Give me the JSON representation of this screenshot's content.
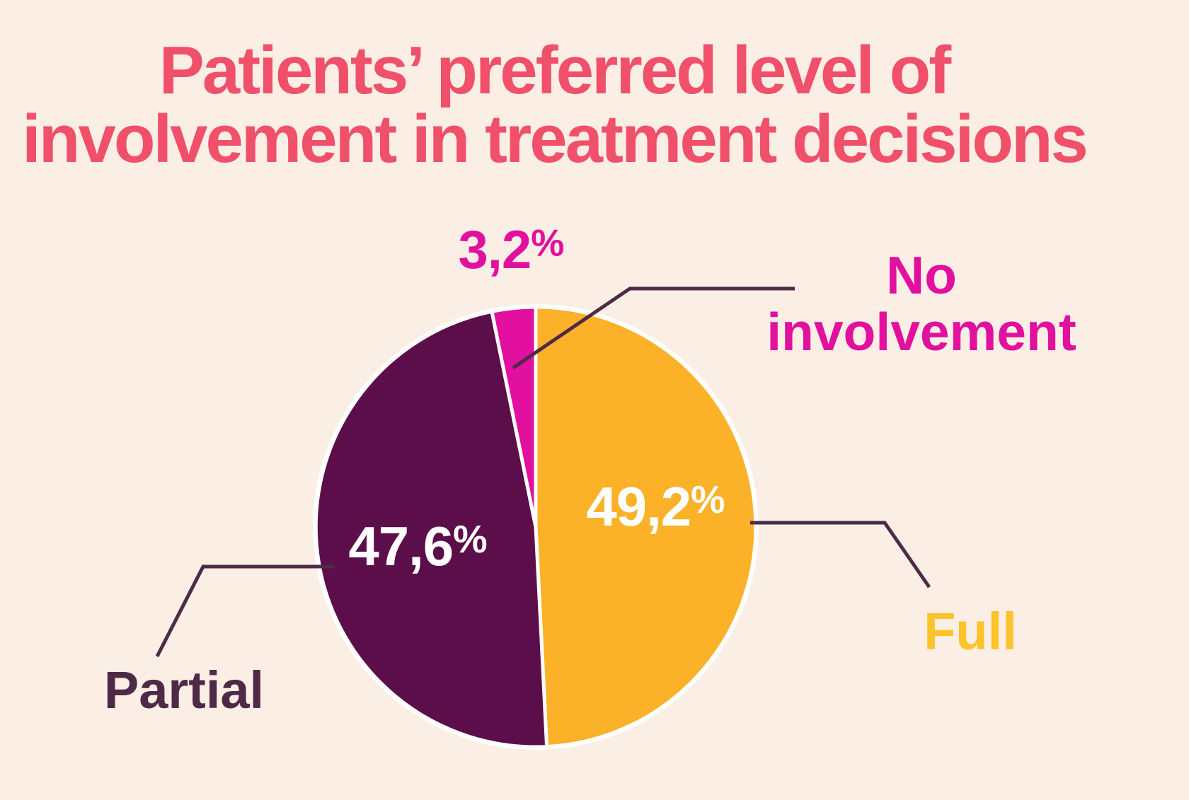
{
  "title": {
    "line1": "Patients’ preferred level of",
    "line2": "involvement in treatment decisions"
  },
  "chart_data": {
    "type": "pie",
    "title": "Patients’ preferred level of involvement in treatment decisions",
    "start_angle_deg": 0,
    "direction": "clockwise",
    "legend_position": "callout-labels",
    "slices": [
      {
        "label": "Full",
        "value": 49.2,
        "display_value": "49,2%",
        "color": "#FBB228"
      },
      {
        "label": "Partial",
        "value": 47.6,
        "display_value": "47,6%",
        "color": "#5C0E4A"
      },
      {
        "label": "No involvement",
        "value": 3.2,
        "display_value": "3,2%",
        "color": "#E2109E"
      }
    ]
  },
  "labels": {
    "no_involvement": {
      "value": "3,2",
      "unit": "%",
      "name_line1": "No",
      "name_line2": "involvement"
    },
    "full": {
      "value": "49,2",
      "unit": "%",
      "name": "Full"
    },
    "partial": {
      "value": "47,6",
      "unit": "%",
      "name": "Partial"
    }
  },
  "colors": {
    "background": "#FBEEE5",
    "title_text": "#F0506A",
    "slice_full": "#FBB228",
    "slice_partial": "#5C0E4A",
    "slice_no_involvement": "#E2109E",
    "value_text_on_pie": "#FFFFFF",
    "label_full_text": "#FCC32B",
    "label_partial_text": "#4E2A47",
    "label_no_involvement_text": "#E2109E",
    "leader_line": "#4E2A47",
    "pie_outline": "#FFFFFF"
  }
}
